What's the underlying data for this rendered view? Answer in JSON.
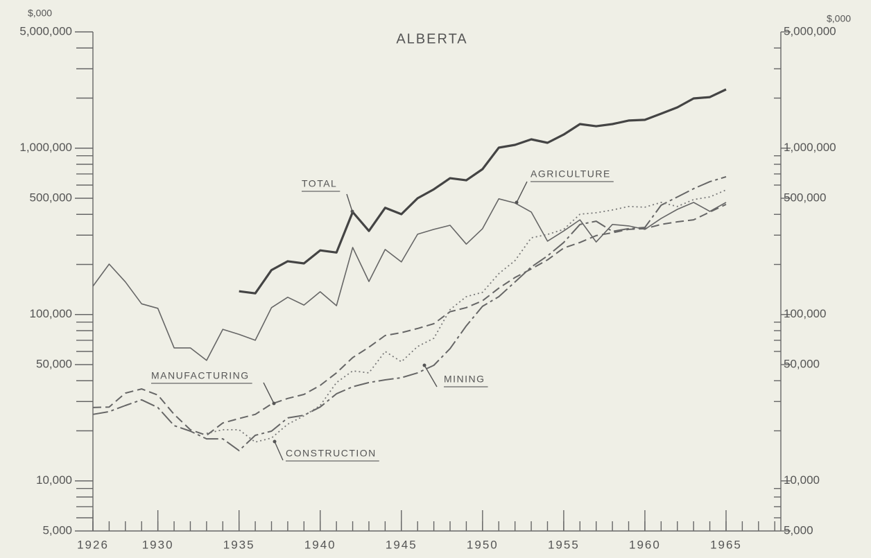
{
  "chart_data": {
    "type": "line",
    "title": "ALBERTA",
    "y_unit_label": "$,000",
    "log_scale": true,
    "xlim": [
      1926,
      1968.4
    ],
    "xticks": [
      1926,
      1930,
      1935,
      1940,
      1945,
      1950,
      1955,
      1960,
      1965
    ],
    "x_minor_ticks": [
      1926,
      1927,
      1928,
      1929,
      1930,
      1931,
      1932,
      1933,
      1934,
      1935,
      1936,
      1937,
      1938,
      1939,
      1940,
      1941,
      1942,
      1943,
      1944,
      1945,
      1946,
      1947,
      1948,
      1949,
      1950,
      1951,
      1952,
      1953,
      1954,
      1955,
      1956,
      1957,
      1958,
      1959,
      1960,
      1961,
      1962,
      1963,
      1964,
      1965,
      1966,
      1967,
      1968
    ],
    "ylim": [
      5000,
      5000000
    ],
    "yticks": [
      {
        "value": 5000,
        "label": "5,000"
      },
      {
        "value": 10000,
        "label": "10,000"
      },
      {
        "value": 50000,
        "label": "50,000"
      },
      {
        "value": 100000,
        "label": "100,000"
      },
      {
        "value": 500000,
        "label": "500,000"
      },
      {
        "value": 1000000,
        "label": "1,000,000"
      },
      {
        "value": 5000000,
        "label": "5,000,000"
      }
    ],
    "y_minor_ticks": [
      6000,
      7000,
      8000,
      9000,
      20000,
      30000,
      40000,
      60000,
      70000,
      80000,
      90000,
      200000,
      300000,
      400000,
      600000,
      700000,
      800000,
      900000,
      2000000,
      3000000,
      4000000
    ],
    "annotations": [
      "TOTAL",
      "AGRICULTURE",
      "MANUFACTURING",
      "MINING",
      "CONSTRUCTION"
    ],
    "series": [
      {
        "name": "TOTAL",
        "color": "#444",
        "x": [
          1935,
          1936,
          1937,
          1938,
          1939,
          1940,
          1941,
          1942,
          1943,
          1944,
          1945,
          1946,
          1947,
          1948,
          1949,
          1950,
          1951,
          1952,
          1953,
          1954,
          1955,
          1956,
          1957,
          1958,
          1959,
          1960,
          1961,
          1962,
          1963,
          1964,
          1965
        ],
        "values": [
          138000,
          134000,
          185000,
          209000,
          203000,
          243000,
          236000,
          413000,
          318000,
          438000,
          401000,
          500000,
          566000,
          660000,
          641000,
          748000,
          1007000,
          1047000,
          1130000,
          1077000,
          1208000,
          1396000,
          1355000,
          1396000,
          1466000,
          1480000,
          1612000,
          1758000,
          1991000,
          2028000,
          2254000
        ]
      },
      {
        "name": "AGRICULTURE",
        "color": "#666",
        "x": [
          1926,
          1927,
          1928,
          1929,
          1930,
          1931,
          1932,
          1933,
          1934,
          1935,
          1936,
          1937,
          1938,
          1939,
          1940,
          1941,
          1942,
          1943,
          1944,
          1945,
          1946,
          1947,
          1948,
          1949,
          1950,
          1951,
          1952,
          1953,
          1954,
          1955,
          1956,
          1957,
          1958,
          1959,
          1960,
          1961,
          1962,
          1963,
          1964,
          1965
        ],
        "values": [
          148000,
          201000,
          157000,
          116000,
          109000,
          63000,
          63000,
          53000,
          81500,
          76000,
          70000,
          110000,
          127000,
          114000,
          137000,
          113000,
          253000,
          158000,
          246000,
          207000,
          304000,
          325000,
          344000,
          265000,
          328000,
          496000,
          468000,
          413000,
          276000,
          318000,
          371000,
          273000,
          348000,
          341000,
          325000,
          378000,
          429000,
          472000,
          417000,
          472000
        ]
      },
      {
        "name": "MANUFACTURING",
        "color": "#666",
        "x": [
          1926,
          1927,
          1928,
          1929,
          1930,
          1931,
          1932,
          1933,
          1934,
          1935,
          1936,
          1937,
          1938,
          1939,
          1940,
          1941,
          1942,
          1943,
          1944,
          1945,
          1946,
          1947,
          1948,
          1949,
          1950,
          1951,
          1952,
          1953,
          1954,
          1955,
          1956,
          1957,
          1958,
          1959,
          1960,
          1961,
          1962,
          1963,
          1964,
          1965
        ],
        "values": [
          27600,
          27800,
          33700,
          35700,
          32800,
          25100,
          20300,
          18800,
          22300,
          23700,
          25100,
          29000,
          31300,
          33100,
          37500,
          44600,
          55100,
          63600,
          74800,
          77800,
          82400,
          88100,
          104000,
          110000,
          121000,
          144000,
          167000,
          188000,
          213000,
          251000,
          271000,
          298000,
          310000,
          325000,
          328000,
          348000,
          361000,
          371000,
          413000,
          459000
        ]
      },
      {
        "name": "MINING",
        "color": "#666",
        "x": [
          1926,
          1927,
          1928,
          1929,
          1930,
          1931,
          1932,
          1933,
          1934,
          1935,
          1936,
          1937,
          1938,
          1939,
          1940,
          1941,
          1942,
          1943,
          1944,
          1945,
          1946,
          1947,
          1948,
          1949,
          1950,
          1951,
          1952,
          1953,
          1954,
          1955,
          1956,
          1957,
          1958,
          1959,
          1960,
          1961,
          1962,
          1963,
          1964,
          1965
        ],
        "values": [
          25100,
          26100,
          28400,
          30700,
          27600,
          21500,
          19900,
          17900,
          17900,
          15200,
          18800,
          19900,
          23900,
          24800,
          27800,
          33400,
          36800,
          39000,
          40500,
          41700,
          44600,
          49500,
          62400,
          85500,
          112000,
          128000,
          157000,
          193000,
          225000,
          271000,
          348000,
          364000,
          316000,
          328000,
          334000,
          454000,
          509000,
          571000,
          629000,
          673000
        ]
      },
      {
        "name": "CONSTRUCTION",
        "color": "#777",
        "x": [
          1933,
          1934,
          1935,
          1936,
          1937,
          1938,
          1939,
          1940,
          1941,
          1942,
          1943,
          1944,
          1945,
          1946,
          1947,
          1948,
          1949,
          1950,
          1951,
          1952,
          1953,
          1954,
          1955,
          1956,
          1957,
          1958,
          1959,
          1960,
          1961,
          1962,
          1963,
          1964,
          1965
        ],
        "values": [
          19300,
          20300,
          20300,
          17100,
          18100,
          21900,
          24600,
          28400,
          39000,
          45800,
          44600,
          60000,
          52000,
          64200,
          72000,
          107000,
          128000,
          136000,
          176000,
          211000,
          289000,
          303000,
          325000,
          401000,
          409000,
          425000,
          446000,
          442000,
          472000,
          446000,
          491000,
          509000,
          561000
        ]
      }
    ]
  }
}
